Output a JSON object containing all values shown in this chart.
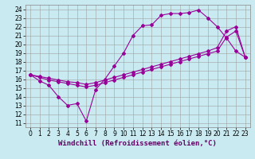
{
  "xlabel": "Windchill (Refroidissement éolien,°C)",
  "bg_color": "#c8eaf0",
  "line_color": "#990099",
  "grid_color": "#a0a0a0",
  "xlim": [
    -0.5,
    23.5
  ],
  "ylim": [
    10.5,
    24.5
  ],
  "xticks": [
    0,
    1,
    2,
    3,
    4,
    5,
    6,
    7,
    8,
    9,
    10,
    11,
    12,
    13,
    14,
    15,
    16,
    17,
    18,
    19,
    20,
    21,
    22,
    23
  ],
  "yticks": [
    11,
    12,
    13,
    14,
    15,
    16,
    17,
    18,
    19,
    20,
    21,
    22,
    23,
    24
  ],
  "line1_x": [
    0,
    1,
    2,
    3,
    4,
    5,
    6,
    7,
    8,
    9,
    10,
    11,
    12,
    13,
    14,
    15,
    16,
    17,
    18,
    19,
    20,
    21,
    22,
    23
  ],
  "line1_y": [
    16.5,
    15.8,
    15.3,
    14.0,
    13.0,
    13.2,
    11.2,
    14.8,
    16.0,
    17.5,
    19.0,
    21.0,
    22.1,
    22.2,
    23.3,
    23.5,
    23.5,
    23.6,
    23.9,
    23.0,
    22.0,
    20.7,
    19.2,
    18.5
  ],
  "line2_x": [
    0,
    1,
    2,
    3,
    4,
    5,
    6,
    7,
    8,
    9,
    10,
    11,
    12,
    13,
    14,
    15,
    16,
    17,
    18,
    19,
    20,
    21,
    22,
    23
  ],
  "line2_y": [
    16.5,
    16.3,
    16.1,
    15.9,
    15.7,
    15.6,
    15.4,
    15.6,
    15.9,
    16.2,
    16.5,
    16.8,
    17.1,
    17.4,
    17.7,
    18.0,
    18.3,
    18.6,
    18.9,
    19.2,
    19.6,
    21.5,
    22.0,
    18.5
  ],
  "line3_x": [
    0,
    1,
    2,
    3,
    4,
    5,
    6,
    7,
    8,
    9,
    10,
    11,
    12,
    13,
    14,
    15,
    16,
    17,
    18,
    19,
    20,
    21,
    22,
    23
  ],
  "line3_y": [
    16.5,
    16.2,
    15.9,
    15.7,
    15.5,
    15.3,
    15.1,
    15.3,
    15.6,
    15.9,
    16.2,
    16.5,
    16.8,
    17.1,
    17.4,
    17.7,
    18.0,
    18.3,
    18.6,
    18.9,
    19.2,
    20.8,
    21.5,
    18.5
  ],
  "marker": "D",
  "markersize": 2.0,
  "linewidth": 0.8,
  "xlabel_fontsize": 6.5,
  "tick_fontsize": 5.5
}
